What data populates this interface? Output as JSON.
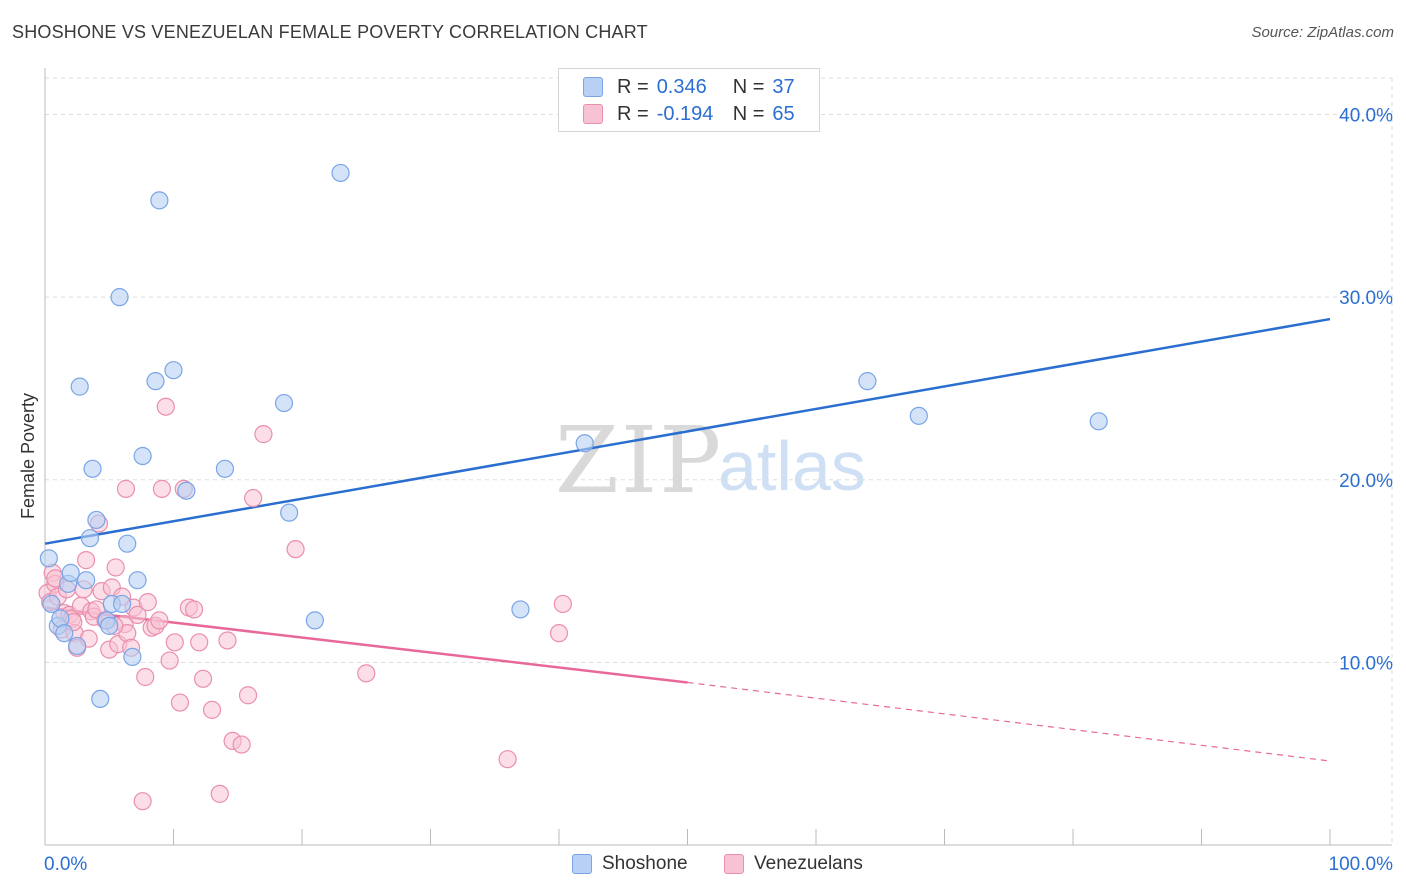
{
  "title": "SHOSHONE VS VENEZUELAN FEMALE POVERTY CORRELATION CHART",
  "source": "Source: ZipAtlas.com",
  "watermark": {
    "zip": "ZIP",
    "atlas": "atlas"
  },
  "legend": {
    "rows": [
      {
        "r_label": "R = ",
        "r_value": "0.346",
        "n_label": "N = ",
        "n_value": "37"
      },
      {
        "r_label": "R = ",
        "r_value": "-0.194",
        "n_label": "N = ",
        "n_value": "65"
      }
    ]
  },
  "bottom_legend": {
    "shoshone": "Shoshone",
    "venezuelans": "Venezuelans"
  },
  "colors": {
    "shoshone_fill": "#b7d0f3",
    "shoshone_stroke": "#7aa5e6",
    "shoshone_line": "#2a6fd0",
    "venezuelan_fill": "#f7c3d4",
    "venezuelan_stroke": "#ea8fad",
    "venezuelan_line": "#e8689a",
    "tick_text": "#2b6fd0",
    "grid": "#dddddd"
  },
  "chart_data": {
    "type": "scatter",
    "title": "SHOSHONE VS VENEZUELAN FEMALE POVERTY CORRELATION CHART",
    "xlabel": "",
    "ylabel": "Female Poverty",
    "xlim": [
      0,
      100
    ],
    "ylim": [
      0,
      42
    ],
    "x_tick_labels": [
      "0.0%",
      "100.0%"
    ],
    "y_ticks": [
      10,
      20,
      30,
      40
    ],
    "y_tick_labels": [
      "10.0%",
      "20.0%",
      "30.0%",
      "40.0%"
    ],
    "grid": true,
    "series": [
      {
        "name": "Shoshone",
        "points": [
          [
            0.3,
            15.7
          ],
          [
            1,
            12.0
          ],
          [
            1.2,
            12.4
          ],
          [
            1.5,
            11.6
          ],
          [
            1.8,
            14.3
          ],
          [
            2,
            14.9
          ],
          [
            2.5,
            10.9
          ],
          [
            2.7,
            25.1
          ],
          [
            3.2,
            14.5
          ],
          [
            3.5,
            16.8
          ],
          [
            3.7,
            20.6
          ],
          [
            4,
            17.8
          ],
          [
            4.3,
            8.0
          ],
          [
            4.8,
            12.3
          ],
          [
            5,
            12.0
          ],
          [
            5.2,
            13.2
          ],
          [
            5.8,
            30.0
          ],
          [
            6,
            13.2
          ],
          [
            6.4,
            16.5
          ],
          [
            6.8,
            10.3
          ],
          [
            7.2,
            14.5
          ],
          [
            7.6,
            21.3
          ],
          [
            8.6,
            25.4
          ],
          [
            8.9,
            35.3
          ],
          [
            10,
            26.0
          ],
          [
            11,
            19.4
          ],
          [
            14,
            20.6
          ],
          [
            18.6,
            24.2
          ],
          [
            19,
            18.2
          ],
          [
            21,
            12.3
          ],
          [
            23,
            36.8
          ],
          [
            37,
            12.9
          ],
          [
            42,
            22.0
          ],
          [
            64,
            25.4
          ],
          [
            68,
            23.5
          ],
          [
            82,
            23.2
          ],
          [
            0.5,
            13.2
          ]
        ],
        "trend": {
          "x": [
            0,
            100
          ],
          "y": [
            16.5,
            28.8
          ]
        }
      },
      {
        "name": "Venezuelans",
        "points": [
          [
            0.2,
            13.8
          ],
          [
            0.4,
            13.3
          ],
          [
            0.6,
            14.9
          ],
          [
            0.8,
            14.3
          ],
          [
            1,
            13.6
          ],
          [
            1.3,
            11.8
          ],
          [
            1.5,
            12.7
          ],
          [
            1.7,
            14.0
          ],
          [
            1.9,
            12.6
          ],
          [
            2.1,
            12.4
          ],
          [
            2.3,
            11.6
          ],
          [
            2.5,
            10.8
          ],
          [
            2.8,
            13.1
          ],
          [
            3,
            14.0
          ],
          [
            3.2,
            15.6
          ],
          [
            3.4,
            11.3
          ],
          [
            3.6,
            12.8
          ],
          [
            3.8,
            12.5
          ],
          [
            4,
            12.9
          ],
          [
            4.2,
            17.6
          ],
          [
            4.4,
            13.9
          ],
          [
            4.7,
            12.3
          ],
          [
            5,
            10.7
          ],
          [
            5.2,
            14.1
          ],
          [
            5.5,
            15.2
          ],
          [
            5.7,
            11.0
          ],
          [
            6,
            13.6
          ],
          [
            6.2,
            12.1
          ],
          [
            6.4,
            11.6
          ],
          [
            6.7,
            10.8
          ],
          [
            6.9,
            13.0
          ],
          [
            7.2,
            12.6
          ],
          [
            7.6,
            2.4
          ],
          [
            7.8,
            9.2
          ],
          [
            8,
            13.3
          ],
          [
            8.3,
            11.9
          ],
          [
            8.6,
            12.0
          ],
          [
            8.9,
            12.3
          ],
          [
            9.1,
            19.5
          ],
          [
            9.4,
            24.0
          ],
          [
            9.7,
            10.1
          ],
          [
            10.1,
            11.1
          ],
          [
            10.5,
            7.8
          ],
          [
            10.8,
            19.5
          ],
          [
            11.2,
            13.0
          ],
          [
            11.6,
            12.9
          ],
          [
            12,
            11.1
          ],
          [
            12.3,
            9.1
          ],
          [
            13,
            7.4
          ],
          [
            13.6,
            2.8
          ],
          [
            14.2,
            11.2
          ],
          [
            14.6,
            5.7
          ],
          [
            15.3,
            5.5
          ],
          [
            15.8,
            8.2
          ],
          [
            16.2,
            19.0
          ],
          [
            17,
            22.5
          ],
          [
            19.5,
            16.2
          ],
          [
            25,
            9.4
          ],
          [
            36,
            4.7
          ],
          [
            40,
            11.6
          ],
          [
            40.3,
            13.2
          ],
          [
            6.3,
            19.5
          ],
          [
            5.4,
            12.0
          ],
          [
            2.2,
            12.2
          ],
          [
            0.8,
            14.6
          ]
        ],
        "trend_solid": {
          "x": [
            0,
            50
          ],
          "y": [
            13.0,
            8.9
          ]
        },
        "trend_dashed": {
          "x": [
            50,
            100
          ],
          "y": [
            8.9,
            4.6
          ]
        }
      }
    ]
  }
}
